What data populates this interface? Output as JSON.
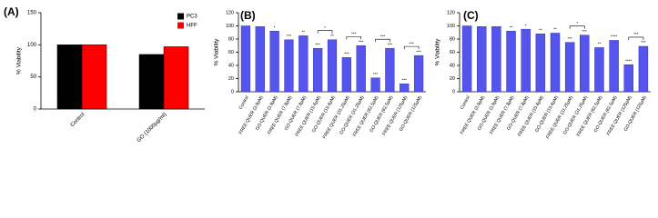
{
  "chart_data": [
    {
      "type": "bar",
      "title": "(A)",
      "y_label": "% Viability",
      "categories": [
        "Control",
        "GO (1000µg/ml)"
      ],
      "series": [
        {
          "name": "PC3",
          "color": "#000000",
          "values": [
            100,
            85
          ]
        },
        {
          "name": "HFF",
          "color": "#ff0000",
          "values": [
            100,
            97
          ]
        }
      ],
      "ylim": [
        0,
        150
      ],
      "yticks": [
        0,
        50,
        100,
        150
      ],
      "legend": "top-right"
    },
    {
      "type": "bar",
      "title": "(B)",
      "y_label": "% Viability",
      "color": "#5555ee",
      "categories": [
        "Control",
        "FREE QUER (3.9µM)",
        "GO-QUER (3.9µM)",
        "FREE QUER (7.8µM)",
        "GO-QUER (7.8µM)",
        "FREE QUER (15.6µM)",
        "GO-QUER (15.6µM)",
        "FREE QUER (31.25µM)",
        "GO-QUER (31.25µM)",
        "FREE QUER (62.5µM)",
        "GO-QUER (62.5µM)",
        "FREE QUER (125µM)",
        "GO-QUER (125µM)"
      ],
      "values": [
        100,
        99,
        92,
        79,
        85,
        66,
        79,
        52,
        70,
        21,
        66,
        12,
        55
      ],
      "significance": [
        null,
        null,
        "*",
        "***",
        "**",
        "***",
        "**",
        "***",
        "***",
        "***",
        "***",
        "***",
        "***"
      ],
      "bracket_labels": [
        null,
        null,
        null,
        null,
        null,
        "*",
        null,
        "***",
        null,
        "***",
        null,
        "***",
        null
      ],
      "ylim": [
        0,
        120
      ],
      "yticks": [
        0,
        20,
        40,
        60,
        80,
        100,
        120
      ]
    },
    {
      "type": "bar",
      "title": "(C)",
      "y_label": "% Viability",
      "color": "#5555ee",
      "categories": [
        "Control",
        "FREE QUER (3.9µM)",
        "GO-QUER (3.9µM)",
        "FREE QUER (7.8µM)",
        "GO-QUER (7.8µM)",
        "FREE QUER (15.6µM)",
        "GO-QUER (15.6µM)",
        "FREE QUER (31.25µM)",
        "GO-QUER (31.25µM)",
        "FREE QUER (62.5µM)",
        "GO-QUER (62.5µM)",
        "FREE QUER (125µM)",
        "GO-QUER (125µM)"
      ],
      "values": [
        100,
        99,
        99,
        92,
        95,
        88,
        89,
        75,
        86,
        67,
        78,
        41,
        69
      ],
      "significance": [
        null,
        null,
        null,
        "**",
        "*",
        "**",
        "**",
        "***",
        "***",
        "**",
        "****",
        "****",
        "***"
      ],
      "bracket_labels": [
        null,
        null,
        null,
        null,
        null,
        null,
        null,
        "*",
        null,
        null,
        null,
        "***",
        null
      ],
      "ylim": [
        0,
        120
      ],
      "yticks": [
        0,
        20,
        40,
        60,
        80,
        100,
        120
      ]
    }
  ]
}
